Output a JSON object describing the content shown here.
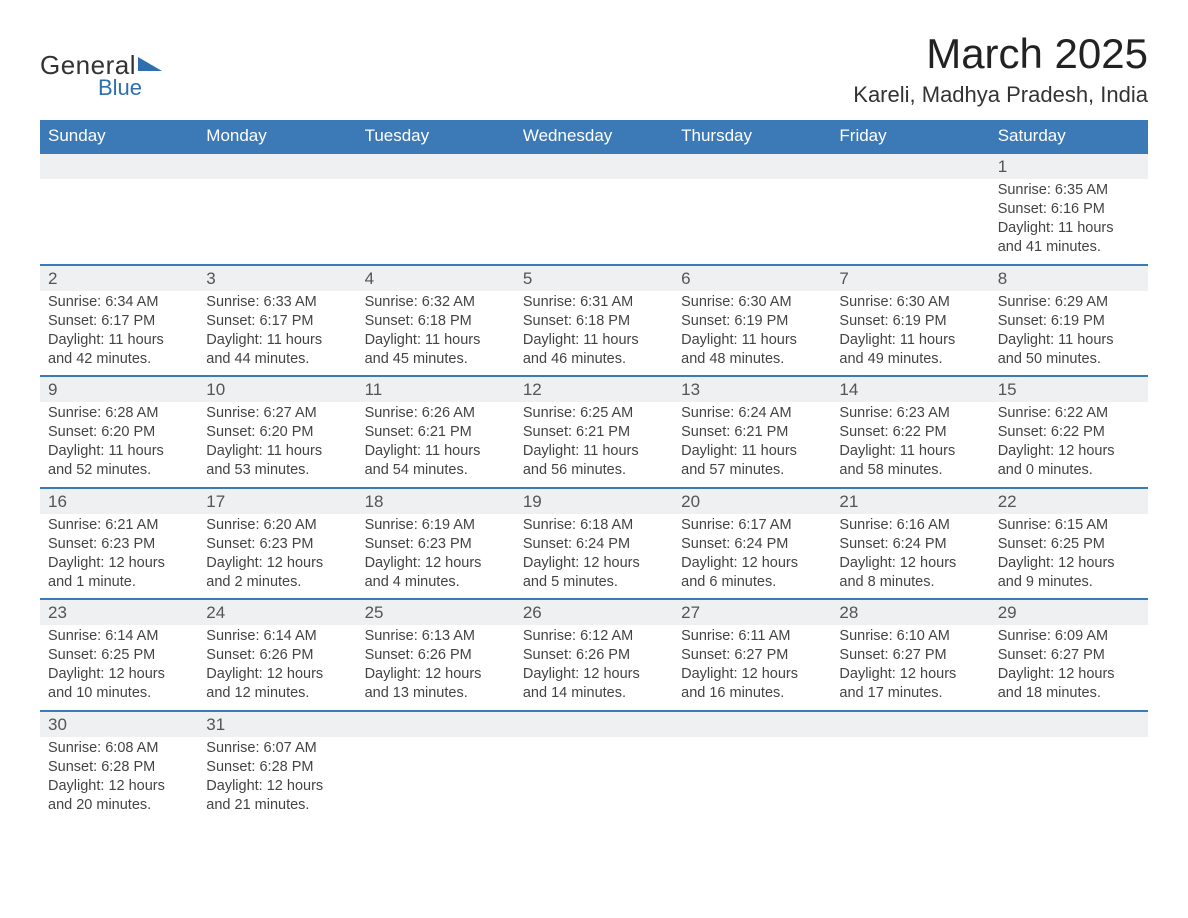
{
  "logo": {
    "text1": "General",
    "text2": "Blue"
  },
  "title": "March 2025",
  "location": "Kareli, Madhya Pradesh, India",
  "header_color": "#3b79b7",
  "daynum_bg": "#eef0f1",
  "rule_color": "#3b79b7",
  "text_color": "#333333",
  "font_family": "Arial, Helvetica, sans-serif",
  "title_fontsize": 42,
  "location_fontsize": 22,
  "header_fontsize": 17,
  "daynum_fontsize": 17,
  "detail_fontsize": 14.5,
  "weekdays": [
    "Sunday",
    "Monday",
    "Tuesday",
    "Wednesday",
    "Thursday",
    "Friday",
    "Saturday"
  ],
  "weeks": [
    [
      null,
      null,
      null,
      null,
      null,
      null,
      {
        "n": "1",
        "sr": "Sunrise: 6:35 AM",
        "ss": "Sunset: 6:16 PM",
        "dl": "Daylight: 11 hours and 41 minutes."
      }
    ],
    [
      {
        "n": "2",
        "sr": "Sunrise: 6:34 AM",
        "ss": "Sunset: 6:17 PM",
        "dl": "Daylight: 11 hours and 42 minutes."
      },
      {
        "n": "3",
        "sr": "Sunrise: 6:33 AM",
        "ss": "Sunset: 6:17 PM",
        "dl": "Daylight: 11 hours and 44 minutes."
      },
      {
        "n": "4",
        "sr": "Sunrise: 6:32 AM",
        "ss": "Sunset: 6:18 PM",
        "dl": "Daylight: 11 hours and 45 minutes."
      },
      {
        "n": "5",
        "sr": "Sunrise: 6:31 AM",
        "ss": "Sunset: 6:18 PM",
        "dl": "Daylight: 11 hours and 46 minutes."
      },
      {
        "n": "6",
        "sr": "Sunrise: 6:30 AM",
        "ss": "Sunset: 6:19 PM",
        "dl": "Daylight: 11 hours and 48 minutes."
      },
      {
        "n": "7",
        "sr": "Sunrise: 6:30 AM",
        "ss": "Sunset: 6:19 PM",
        "dl": "Daylight: 11 hours and 49 minutes."
      },
      {
        "n": "8",
        "sr": "Sunrise: 6:29 AM",
        "ss": "Sunset: 6:19 PM",
        "dl": "Daylight: 11 hours and 50 minutes."
      }
    ],
    [
      {
        "n": "9",
        "sr": "Sunrise: 6:28 AM",
        "ss": "Sunset: 6:20 PM",
        "dl": "Daylight: 11 hours and 52 minutes."
      },
      {
        "n": "10",
        "sr": "Sunrise: 6:27 AM",
        "ss": "Sunset: 6:20 PM",
        "dl": "Daylight: 11 hours and 53 minutes."
      },
      {
        "n": "11",
        "sr": "Sunrise: 6:26 AM",
        "ss": "Sunset: 6:21 PM",
        "dl": "Daylight: 11 hours and 54 minutes."
      },
      {
        "n": "12",
        "sr": "Sunrise: 6:25 AM",
        "ss": "Sunset: 6:21 PM",
        "dl": "Daylight: 11 hours and 56 minutes."
      },
      {
        "n": "13",
        "sr": "Sunrise: 6:24 AM",
        "ss": "Sunset: 6:21 PM",
        "dl": "Daylight: 11 hours and 57 minutes."
      },
      {
        "n": "14",
        "sr": "Sunrise: 6:23 AM",
        "ss": "Sunset: 6:22 PM",
        "dl": "Daylight: 11 hours and 58 minutes."
      },
      {
        "n": "15",
        "sr": "Sunrise: 6:22 AM",
        "ss": "Sunset: 6:22 PM",
        "dl": "Daylight: 12 hours and 0 minutes."
      }
    ],
    [
      {
        "n": "16",
        "sr": "Sunrise: 6:21 AM",
        "ss": "Sunset: 6:23 PM",
        "dl": "Daylight: 12 hours and 1 minute."
      },
      {
        "n": "17",
        "sr": "Sunrise: 6:20 AM",
        "ss": "Sunset: 6:23 PM",
        "dl": "Daylight: 12 hours and 2 minutes."
      },
      {
        "n": "18",
        "sr": "Sunrise: 6:19 AM",
        "ss": "Sunset: 6:23 PM",
        "dl": "Daylight: 12 hours and 4 minutes."
      },
      {
        "n": "19",
        "sr": "Sunrise: 6:18 AM",
        "ss": "Sunset: 6:24 PM",
        "dl": "Daylight: 12 hours and 5 minutes."
      },
      {
        "n": "20",
        "sr": "Sunrise: 6:17 AM",
        "ss": "Sunset: 6:24 PM",
        "dl": "Daylight: 12 hours and 6 minutes."
      },
      {
        "n": "21",
        "sr": "Sunrise: 6:16 AM",
        "ss": "Sunset: 6:24 PM",
        "dl": "Daylight: 12 hours and 8 minutes."
      },
      {
        "n": "22",
        "sr": "Sunrise: 6:15 AM",
        "ss": "Sunset: 6:25 PM",
        "dl": "Daylight: 12 hours and 9 minutes."
      }
    ],
    [
      {
        "n": "23",
        "sr": "Sunrise: 6:14 AM",
        "ss": "Sunset: 6:25 PM",
        "dl": "Daylight: 12 hours and 10 minutes."
      },
      {
        "n": "24",
        "sr": "Sunrise: 6:14 AM",
        "ss": "Sunset: 6:26 PM",
        "dl": "Daylight: 12 hours and 12 minutes."
      },
      {
        "n": "25",
        "sr": "Sunrise: 6:13 AM",
        "ss": "Sunset: 6:26 PM",
        "dl": "Daylight: 12 hours and 13 minutes."
      },
      {
        "n": "26",
        "sr": "Sunrise: 6:12 AM",
        "ss": "Sunset: 6:26 PM",
        "dl": "Daylight: 12 hours and 14 minutes."
      },
      {
        "n": "27",
        "sr": "Sunrise: 6:11 AM",
        "ss": "Sunset: 6:27 PM",
        "dl": "Daylight: 12 hours and 16 minutes."
      },
      {
        "n": "28",
        "sr": "Sunrise: 6:10 AM",
        "ss": "Sunset: 6:27 PM",
        "dl": "Daylight: 12 hours and 17 minutes."
      },
      {
        "n": "29",
        "sr": "Sunrise: 6:09 AM",
        "ss": "Sunset: 6:27 PM",
        "dl": "Daylight: 12 hours and 18 minutes."
      }
    ],
    [
      {
        "n": "30",
        "sr": "Sunrise: 6:08 AM",
        "ss": "Sunset: 6:28 PM",
        "dl": "Daylight: 12 hours and 20 minutes."
      },
      {
        "n": "31",
        "sr": "Sunrise: 6:07 AM",
        "ss": "Sunset: 6:28 PM",
        "dl": "Daylight: 12 hours and 21 minutes."
      },
      null,
      null,
      null,
      null,
      null
    ]
  ]
}
